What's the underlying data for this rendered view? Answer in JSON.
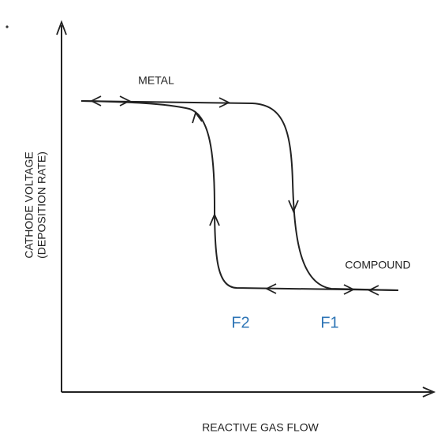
{
  "labels": {
    "y_axis_line1": "CATHODE VOLTAGE",
    "y_axis_line2": "(DEPOSITION RATE)",
    "x_axis": "REACTIVE GAS FLOW",
    "metal": "METAL",
    "compound": "COMPOUND",
    "f2": "F2",
    "f1": "F1"
  }
}
